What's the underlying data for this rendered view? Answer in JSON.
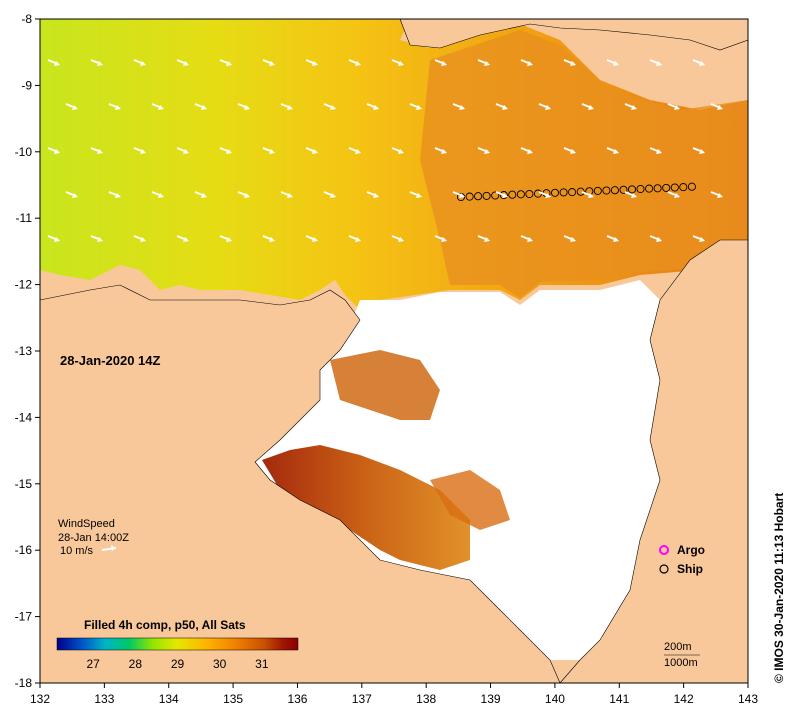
{
  "map": {
    "date_label": "28-Jan-2020 14Z",
    "copyright": "© IMOS 30-Jan-2020 11:13 Hobart",
    "x_ticks": [
      "132",
      "133",
      "134",
      "135",
      "136",
      "137",
      "138",
      "139",
      "140",
      "141",
      "142",
      "143"
    ],
    "y_ticks": [
      "-8",
      "-9",
      "-10",
      "-11",
      "-12",
      "-13",
      "-14",
      "-15",
      "-16",
      "-17",
      "-18"
    ],
    "wind": {
      "title": "WindSpeed",
      "time": "28-Jan 14:00Z",
      "scale_label": "10 m/s"
    },
    "legend": {
      "argo_label": "Argo",
      "ship_label": "Ship",
      "argo_color": "#ff00ff",
      "ship_color": "#000000"
    },
    "colorbar": {
      "title": "Filled 4h comp, p50, All Sats",
      "ticks": [
        "27",
        "28",
        "29",
        "30",
        "31"
      ],
      "stops": [
        "#00008c",
        "#0050c8",
        "#00b4c8",
        "#00c864",
        "#96e600",
        "#e6e600",
        "#ffb400",
        "#f08200",
        "#c85000",
        "#a01400",
        "#8c0000"
      ]
    },
    "contours": {
      "shallow_label": "200m",
      "deep_label": "1000m"
    },
    "colors": {
      "land": "#f9c89a",
      "ocean_no_data": "#ffffff"
    }
  }
}
